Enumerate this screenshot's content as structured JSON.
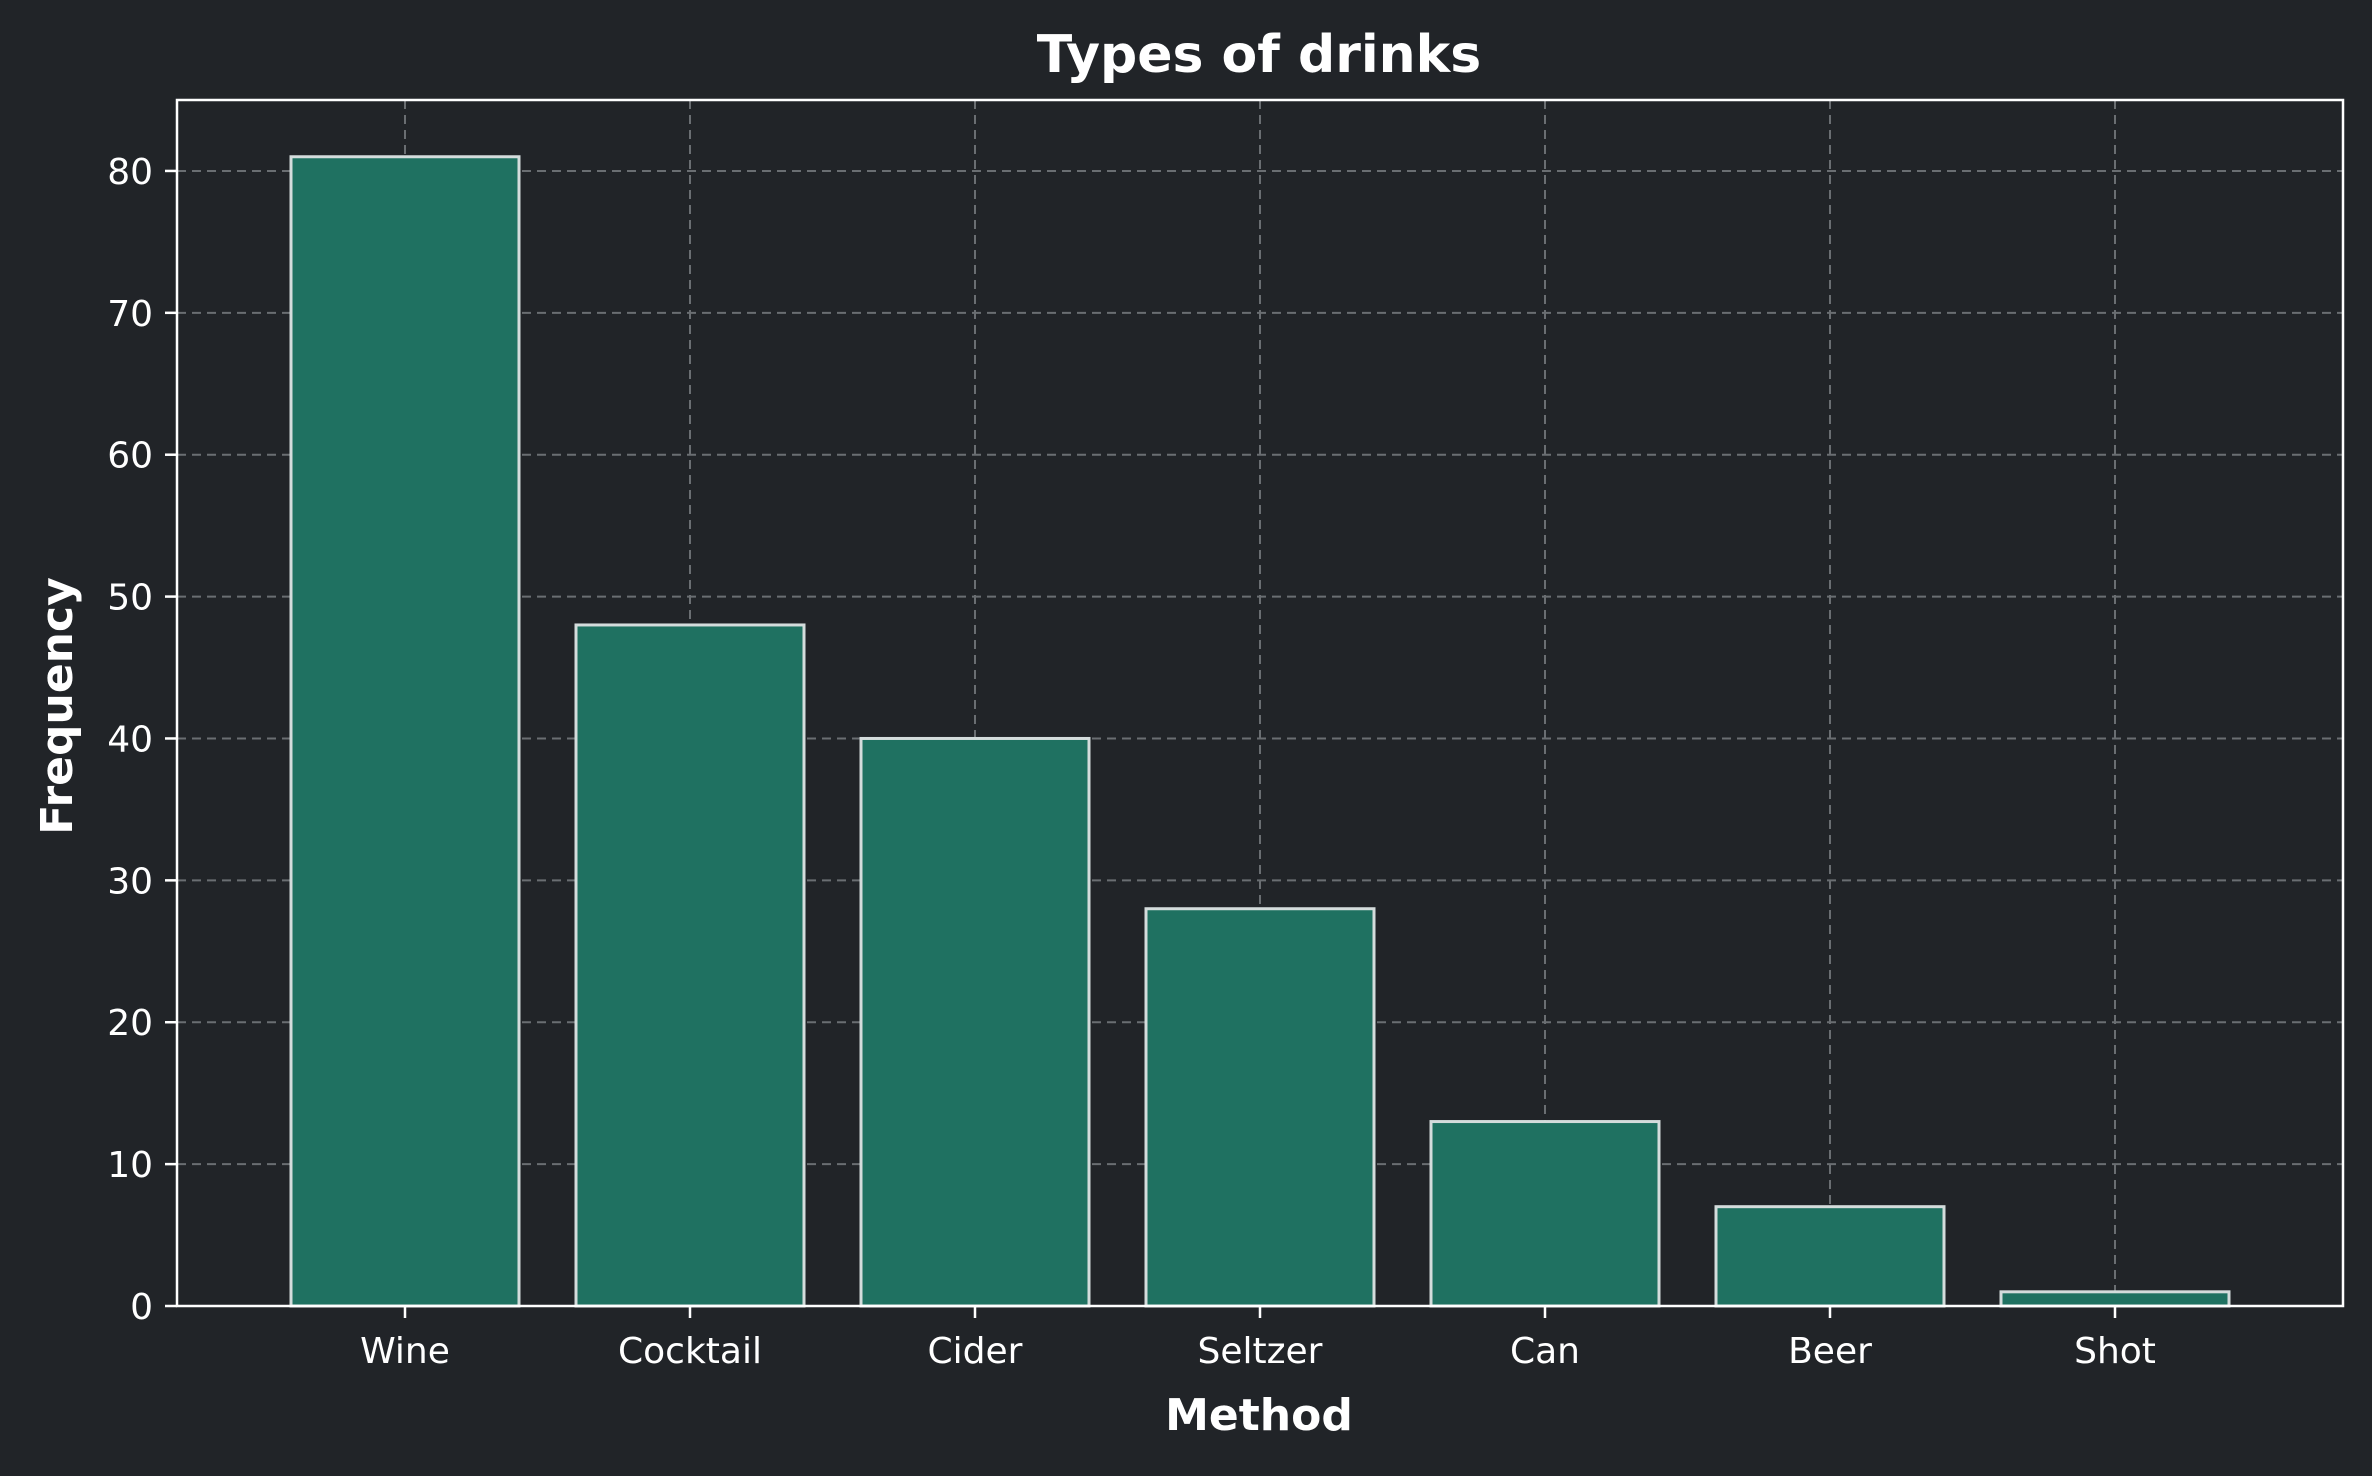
{
  "chart_data": {
    "type": "bar",
    "title": "Types of drinks",
    "xlabel": "Method",
    "ylabel": "Frequency",
    "categories": [
      "Wine",
      "Cocktail",
      "Cider",
      "Seltzer",
      "Can",
      "Beer",
      "Shot"
    ],
    "values": [
      81,
      48,
      40,
      28,
      13,
      7,
      1
    ],
    "ylim": [
      0,
      85
    ],
    "yticks": [
      "0",
      "10",
      "20",
      "30",
      "40",
      "50",
      "60",
      "70",
      "80"
    ],
    "grid": true,
    "legend": "none",
    "colors": {
      "background": "#212428",
      "bar_fill": "#1f7161",
      "bar_edge": "#d4dcdc",
      "grid": "#6a6e72",
      "axes": "#ffffff",
      "text": "#ffffff"
    }
  }
}
